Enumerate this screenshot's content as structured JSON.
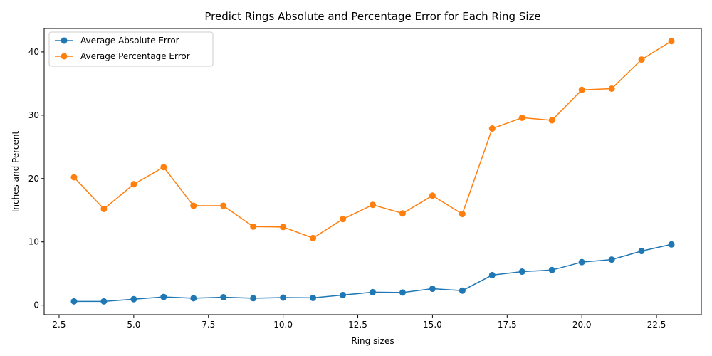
{
  "chart_data": {
    "type": "line",
    "title": "Predict Rings Absolute and Percentage Error for Each Ring Size",
    "xlabel": "Ring sizes",
    "ylabel": "Inches and Percent",
    "xlim": [
      2.0,
      24.0
    ],
    "ylim": [
      -1.5,
      43.7
    ],
    "xticks": [
      2.5,
      5.0,
      7.5,
      10.0,
      12.5,
      15.0,
      17.5,
      20.0,
      22.5
    ],
    "xtick_labels": [
      "2.5",
      "5.0",
      "7.5",
      "10.0",
      "12.5",
      "15.0",
      "17.5",
      "20.0",
      "22.5"
    ],
    "yticks": [
      0,
      10,
      20,
      30,
      40
    ],
    "ytick_labels": [
      "0",
      "10",
      "20",
      "30",
      "40"
    ],
    "grid": false,
    "legend_position": "top-left",
    "x": [
      3,
      4,
      5,
      6,
      7,
      8,
      9,
      10,
      11,
      12,
      13,
      14,
      15,
      16,
      17,
      18,
      19,
      20,
      21,
      22,
      23
    ],
    "series": [
      {
        "name": "Average Absolute Error",
        "color": "#1f77b4",
        "values": [
          0.6,
          0.6,
          0.95,
          1.3,
          1.1,
          1.25,
          1.1,
          1.2,
          1.15,
          1.6,
          2.05,
          2.0,
          2.6,
          2.3,
          4.75,
          5.3,
          5.55,
          6.8,
          7.2,
          8.55,
          9.6
        ]
      },
      {
        "name": "Average Percentage Error",
        "color": "#ff7f0e",
        "values": [
          20.2,
          15.2,
          19.1,
          21.8,
          15.7,
          15.7,
          12.4,
          12.35,
          10.6,
          13.6,
          15.85,
          14.5,
          17.3,
          14.4,
          27.9,
          29.6,
          29.2,
          34.0,
          34.2,
          38.8,
          41.7
        ]
      }
    ]
  }
}
